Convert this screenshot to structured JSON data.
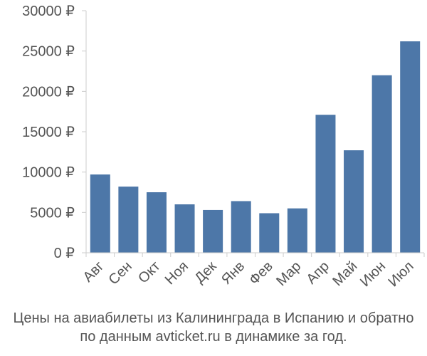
{
  "chart_data": {
    "type": "bar",
    "categories": [
      "Авг",
      "Сен",
      "Окт",
      "Ноя",
      "Дек",
      "Янв",
      "Фев",
      "Мар",
      "Апр",
      "Май",
      "Июн",
      "Июл"
    ],
    "values": [
      9700,
      8200,
      7500,
      6000,
      5300,
      6400,
      4900,
      5500,
      17100,
      12700,
      22000,
      26200
    ],
    "ylim": [
      0,
      30000
    ],
    "y_ticks": [
      "0 ₽",
      "5000 ₽",
      "10000 ₽",
      "15000 ₽",
      "20000 ₽",
      "25000 ₽",
      "30000 ₽"
    ],
    "bar_color": "#4d77a8",
    "grid": false
  },
  "caption": {
    "line1": "Цены на авиабилеты из Калининграда в Испанию и обратно",
    "line2": "по данным avticket.ru в динамике за год."
  }
}
